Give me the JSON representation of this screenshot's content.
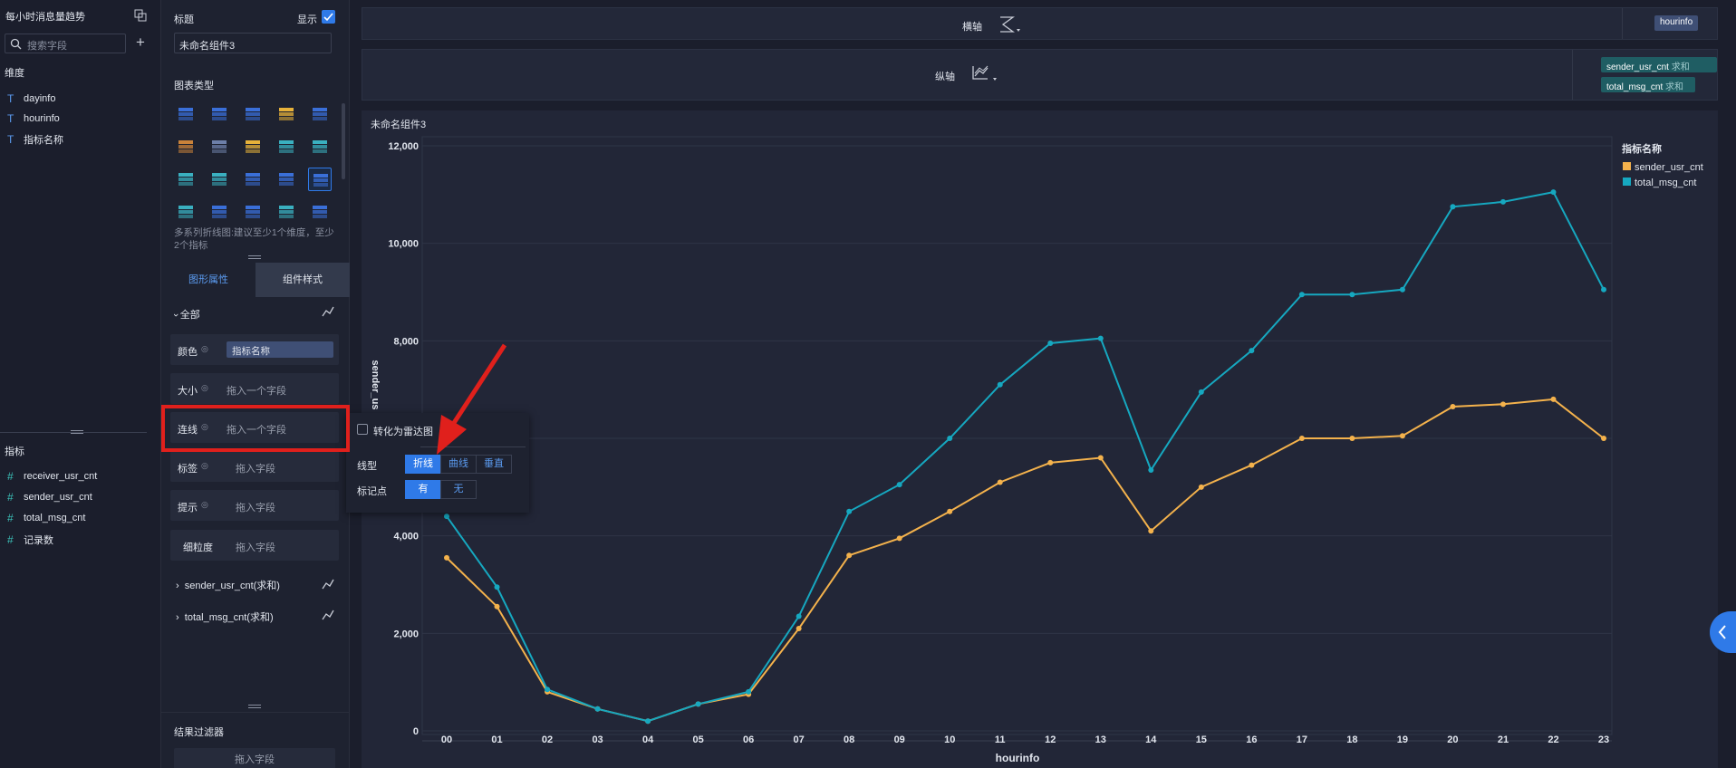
{
  "left_panel": {
    "title": "每小时消息量趋势",
    "search_placeholder": "搜索字段",
    "dimensions_label": "维度",
    "dimensions": [
      "dayinfo",
      "hourinfo",
      "指标名称"
    ],
    "measures_label": "指标",
    "measures": [
      "receiver_usr_cnt",
      "sender_usr_cnt",
      "total_msg_cnt",
      "记录数"
    ]
  },
  "mid_panel": {
    "title_label": "标题",
    "show_label": "显示",
    "title_value": "未命名组件3",
    "chart_type_label": "图表类型",
    "chart_hint": "多系列折线图:建议至少1个维度，至少2个指标",
    "tabs": [
      "图形属性",
      "组件样式"
    ],
    "all_label": "全部",
    "props": [
      {
        "label": "颜色",
        "value": "指标名称"
      },
      {
        "label": "大小",
        "value": "拖入一个字段"
      },
      {
        "label": "连线",
        "value": "拖入一个字段"
      },
      {
        "label": "标签",
        "value": "拖入字段"
      },
      {
        "label": "提示",
        "value": "拖入字段"
      },
      {
        "label": "细粒度",
        "value": "拖入字段"
      }
    ],
    "series_items": [
      "sender_usr_cnt(求和)",
      "total_msg_cnt(求和)"
    ],
    "filter_label": "结果过滤器",
    "filter_placeholder": "拖入字段"
  },
  "popup": {
    "radar_label": "转化为雷达图",
    "line_type_label": "线型",
    "line_types": [
      "折线",
      "曲线",
      "垂直"
    ],
    "marker_label": "标记点",
    "marker_options": [
      "有",
      "无"
    ]
  },
  "shelves": {
    "x_label": "横轴",
    "x_field": "hourinfo",
    "y_label": "纵轴",
    "y_fields": [
      {
        "name": "sender_usr_cnt",
        "agg": "求和"
      },
      {
        "name": "total_msg_cnt",
        "agg": "求和"
      }
    ]
  },
  "chart_panel_title": "未命名组件3",
  "colors": {
    "sender": "#f4b24c",
    "total": "#16a8c0",
    "accent": "#2f7ae8",
    "annotation": "#e0201c"
  },
  "chart_data": {
    "type": "line",
    "categories": [
      "00",
      "01",
      "02",
      "03",
      "04",
      "05",
      "06",
      "07",
      "08",
      "09",
      "10",
      "11",
      "12",
      "13",
      "14",
      "15",
      "16",
      "17",
      "18",
      "19",
      "20",
      "21",
      "22",
      "23"
    ],
    "xlabel": "hourinfo",
    "ylabel": "sender_us",
    "ylim": [
      0,
      12000
    ],
    "yticks": [
      "0",
      "2,000",
      "4,000",
      "6,000",
      "8,000",
      "10,000",
      "12,000"
    ],
    "legend_title": "指标名称",
    "legend_position": "right",
    "series": [
      {
        "name": "sender_usr_cnt",
        "values": [
          3550,
          2550,
          800,
          450,
          200,
          550,
          750,
          2100,
          3600,
          3950,
          4500,
          5100,
          5500,
          5600,
          4100,
          5000,
          5450,
          6000,
          6000,
          6050,
          6650,
          6700,
          6800,
          6000
        ]
      },
      {
        "name": "total_msg_cnt",
        "values": [
          4400,
          2950,
          850,
          450,
          200,
          550,
          800,
          2350,
          4500,
          5050,
          6000,
          7100,
          7950,
          8050,
          5350,
          6950,
          7800,
          8950,
          8950,
          9050,
          10750,
          10850,
          11050,
          9050
        ]
      }
    ]
  }
}
